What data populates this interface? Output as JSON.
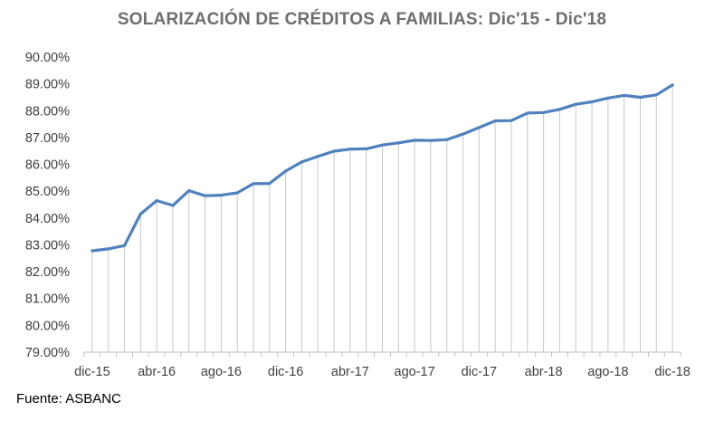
{
  "chart_data": {
    "type": "line",
    "title": "SOLARIZACIÓN DE CRÉDITOS A FAMILIAS: Dic'15 - Dic'18",
    "xlabel": "",
    "ylabel": "",
    "ylim": [
      79,
      90
    ],
    "yticks": [
      "79.00%",
      "80.00%",
      "81.00%",
      "82.00%",
      "83.00%",
      "84.00%",
      "85.00%",
      "86.00%",
      "87.00%",
      "88.00%",
      "89.00%",
      "90.00%"
    ],
    "xtick_labels": [
      "dic-15",
      "abr-16",
      "ago-16",
      "dic-16",
      "abr-17",
      "ago-17",
      "dic-17",
      "abr-18",
      "ago-18",
      "dic-18"
    ],
    "x": [
      "dic-15",
      "ene-16",
      "feb-16",
      "mar-16",
      "abr-16",
      "may-16",
      "jun-16",
      "jul-16",
      "ago-16",
      "sep-16",
      "oct-16",
      "nov-16",
      "dic-16",
      "ene-17",
      "feb-17",
      "mar-17",
      "abr-17",
      "may-17",
      "jun-17",
      "jul-17",
      "ago-17",
      "sep-17",
      "oct-17",
      "nov-17",
      "dic-17",
      "ene-18",
      "feb-18",
      "mar-18",
      "abr-18",
      "may-18",
      "jun-18",
      "jul-18",
      "ago-18",
      "sep-18",
      "oct-18",
      "nov-18",
      "dic-18"
    ],
    "series": [
      {
        "values": [
          82.78,
          82.85,
          82.97,
          84.15,
          84.65,
          84.47,
          85.02,
          84.83,
          84.85,
          84.94,
          85.28,
          85.29,
          85.75,
          86.09,
          86.3,
          86.49,
          86.57,
          86.58,
          86.72,
          86.8,
          86.9,
          86.89,
          86.92,
          87.13,
          87.37,
          87.62,
          87.63,
          87.91,
          87.93,
          88.05,
          88.24,
          88.33,
          88.47,
          88.57,
          88.5,
          88.59,
          88.96
        ]
      }
    ],
    "grid": false,
    "drop_lines": true,
    "line_color": "#4f81bd",
    "drop_line_color": "#c8c8c8"
  },
  "footer": {
    "source": "Fuente: ASBANC"
  }
}
